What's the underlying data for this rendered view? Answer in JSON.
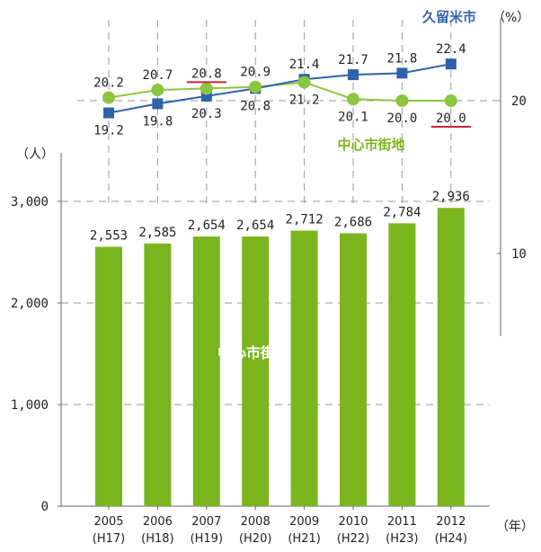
{
  "chart_data": {
    "type": "bar",
    "categories": [
      "2005",
      "2006",
      "2007",
      "2008",
      "2009",
      "2010",
      "2011",
      "2012"
    ],
    "categories_sub": [
      "(H17)",
      "(H18)",
      "(H19)",
      "(H20)",
      "(H21)",
      "(H22)",
      "(H23)",
      "(H24)"
    ],
    "values": [
      2553,
      2585,
      2654,
      2654,
      2712,
      2686,
      2784,
      2936
    ],
    "value_labels": [
      "2,553",
      "2,585",
      "2,654",
      "2,654",
      "2,712",
      "2,686",
      "2,784",
      "2,936"
    ],
    "bar_series_label": "中心市街地",
    "ylabel": "（人）",
    "xlabel": "（年）",
    "ylim": [
      0,
      3000
    ],
    "y_ticks": [
      0,
      1000,
      2000,
      3000
    ],
    "y_tick_labels": [
      "0",
      "1,000",
      "2,000",
      "3,000"
    ],
    "color": "#7ab51d",
    "grid": "horizontal dashed",
    "line_chart": {
      "type": "line",
      "ylabel": "（%）",
      "y_ticks": [
        10,
        20
      ],
      "y_tick_labels": [
        "10",
        "20"
      ],
      "ylim": [
        0,
        23
      ],
      "series": [
        {
          "name": "久留米市",
          "values": [
            19.2,
            19.8,
            20.3,
            20.8,
            21.4,
            21.7,
            21.8,
            22.4
          ],
          "labels": [
            "19.2",
            "19.8",
            "20.3",
            "20.8",
            "21.4",
            "21.7",
            "21.8",
            "22.4"
          ],
          "color": "#2e62aa",
          "marker": "square"
        },
        {
          "name": "中心市街地",
          "values": [
            20.2,
            20.7,
            20.8,
            20.9,
            21.2,
            20.1,
            20.0,
            20.0
          ],
          "labels": [
            "20.2",
            "20.7",
            "20.8",
            "20.9",
            "21.2",
            "20.1",
            "20.0",
            "20.0"
          ],
          "color": "#8cc63f",
          "marker": "circle"
        }
      ],
      "underlined_labels": [
        "20.8",
        "20.0"
      ],
      "underline_color": "#cc2233"
    }
  }
}
